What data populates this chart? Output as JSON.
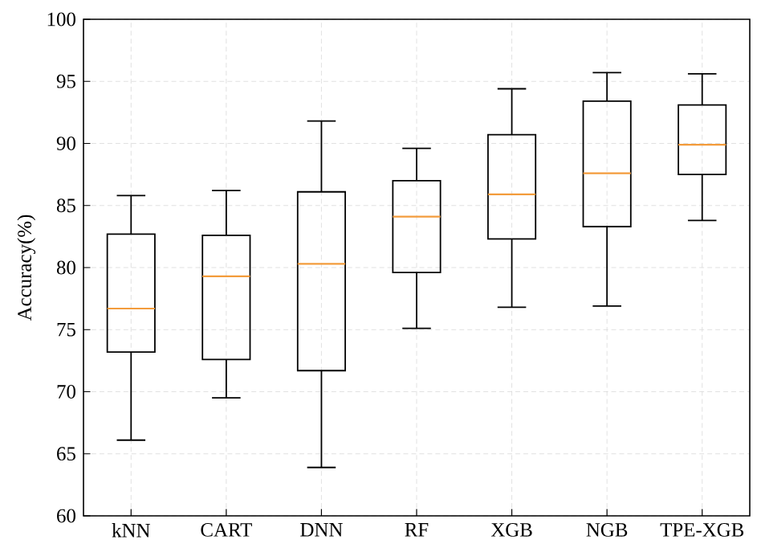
{
  "chart_data": {
    "type": "box",
    "ylabel": "Accuracy(%)",
    "categories": [
      "kNN",
      "CART",
      "DNN",
      "RF",
      "XGB",
      "NGB",
      "TPE-XGB"
    ],
    "color": "#000000",
    "boxes": [
      {
        "low": 66.1,
        "q1": 73.2,
        "median": 76.7,
        "q3": 82.7,
        "high": 85.8
      },
      {
        "low": 69.5,
        "q1": 72.6,
        "median": 79.3,
        "q3": 82.6,
        "high": 86.2
      },
      {
        "low": 63.9,
        "q1": 71.7,
        "median": 80.3,
        "q3": 86.1,
        "high": 91.8
      },
      {
        "low": 75.1,
        "q1": 79.6,
        "median": 84.1,
        "q3": 87.0,
        "high": 89.6
      },
      {
        "low": 76.8,
        "q1": 82.3,
        "median": 85.9,
        "q3": 90.7,
        "high": 94.4
      },
      {
        "low": 76.9,
        "q1": 83.3,
        "median": 87.6,
        "q3": 93.4,
        "high": 95.7
      },
      {
        "low": 83.8,
        "q1": 87.5,
        "median": 89.9,
        "q3": 93.1,
        "high": 95.6
      }
    ],
    "ylim": [
      60,
      100
    ],
    "yticks": [
      60,
      65,
      70,
      75,
      80,
      85,
      90,
      95,
      100
    ],
    "grid": true
  }
}
